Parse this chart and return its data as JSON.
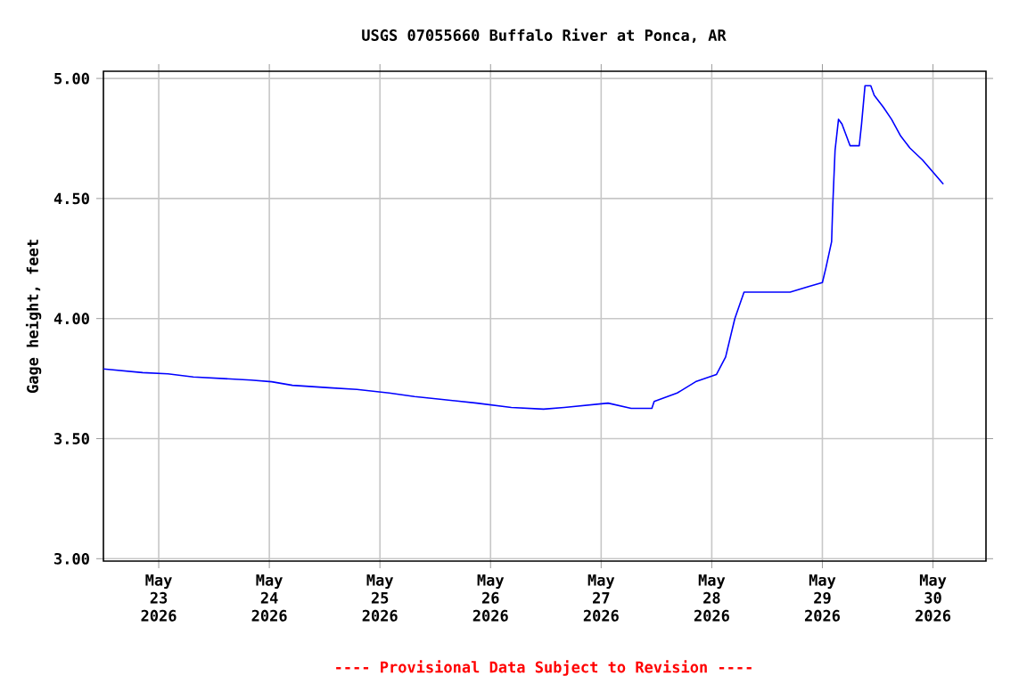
{
  "chart_data": {
    "type": "line",
    "title": "USGS 07055660 Buffalo River at Ponca, AR",
    "ylabel": "Gage height, feet",
    "annotations": [
      "---- Provisional Data Subject to Revision ----"
    ],
    "x": [
      "2026-05-22T12:00",
      "2026-05-22T20:30",
      "2026-05-23T02:00",
      "2026-05-23T07:30",
      "2026-05-23T20:00",
      "2026-05-24T00:30",
      "2026-05-24T05:00",
      "2026-05-24T13:00",
      "2026-05-24T19:00",
      "2026-05-25T02:00",
      "2026-05-25T07:30",
      "2026-05-25T13:30",
      "2026-05-25T21:00",
      "2026-05-26T04:30",
      "2026-05-26T11:30",
      "2026-05-26T16:00",
      "2026-05-27T01:30",
      "2026-05-27T06:30",
      "2026-05-27T11:00",
      "2026-05-27T11:30",
      "2026-05-27T16:30",
      "2026-05-27T20:30",
      "2026-05-28T01:00",
      "2026-05-28T03:00",
      "2026-05-28T05:00",
      "2026-05-28T07:00",
      "2026-05-28T17:00",
      "2026-05-28T21:00",
      "2026-05-29T00:00",
      "2026-05-29T00:45",
      "2026-05-29T02:00",
      "2026-05-29T02:15",
      "2026-05-29T02:45",
      "2026-05-29T03:30",
      "2026-05-29T04:15",
      "2026-05-29T06:00",
      "2026-05-29T06:30",
      "2026-05-29T08:00",
      "2026-05-29T08:30",
      "2026-05-29T09:15",
      "2026-05-29T10:30",
      "2026-05-29T11:15",
      "2026-05-29T13:15",
      "2026-05-29T15:00",
      "2026-05-29T17:00",
      "2026-05-29T19:00",
      "2026-05-29T21:45",
      "2026-05-30T00:00",
      "2026-05-30T02:15"
    ],
    "series": [
      {
        "color": "#0000ff",
        "values": [
          3.79,
          3.775,
          3.77,
          3.757,
          3.744,
          3.737,
          3.722,
          3.712,
          3.705,
          3.69,
          3.675,
          3.663,
          3.648,
          3.63,
          3.623,
          3.63,
          3.648,
          3.626,
          3.626,
          3.655,
          3.69,
          3.737,
          3.767,
          3.84,
          4.0,
          4.11,
          4.11,
          4.133,
          4.15,
          4.21,
          4.32,
          4.47,
          4.7,
          4.83,
          4.81,
          4.72,
          4.72,
          4.72,
          4.81,
          4.97,
          4.97,
          4.93,
          4.88,
          4.83,
          4.76,
          4.71,
          4.66,
          4.61,
          4.56
        ]
      }
    ],
    "xlim": [
      "2026-05-22T12:00",
      "2026-05-30T11:30"
    ],
    "ylim": [
      2.99,
      5.03
    ],
    "xticks": [
      {
        "value": "2026-05-23",
        "label": "May 23 2026"
      },
      {
        "value": "2026-05-24",
        "label": "May 24 2026"
      },
      {
        "value": "2026-05-25",
        "label": "May 25 2026"
      },
      {
        "value": "2026-05-26",
        "label": "May 26 2026"
      },
      {
        "value": "2026-05-27",
        "label": "May 27 2026"
      },
      {
        "value": "2026-05-28",
        "label": "May 28 2026"
      },
      {
        "value": "2026-05-29",
        "label": "May 29 2026"
      },
      {
        "value": "2026-05-30",
        "label": "May 30 2026"
      }
    ],
    "yticks": [
      {
        "value": 3.0,
        "label": "3.00"
      },
      {
        "value": 3.5,
        "label": "3.50"
      },
      {
        "value": 4.0,
        "label": "4.00"
      },
      {
        "value": 4.5,
        "label": "4.50"
      },
      {
        "value": 5.0,
        "label": "5.00"
      }
    ],
    "grid": true
  }
}
